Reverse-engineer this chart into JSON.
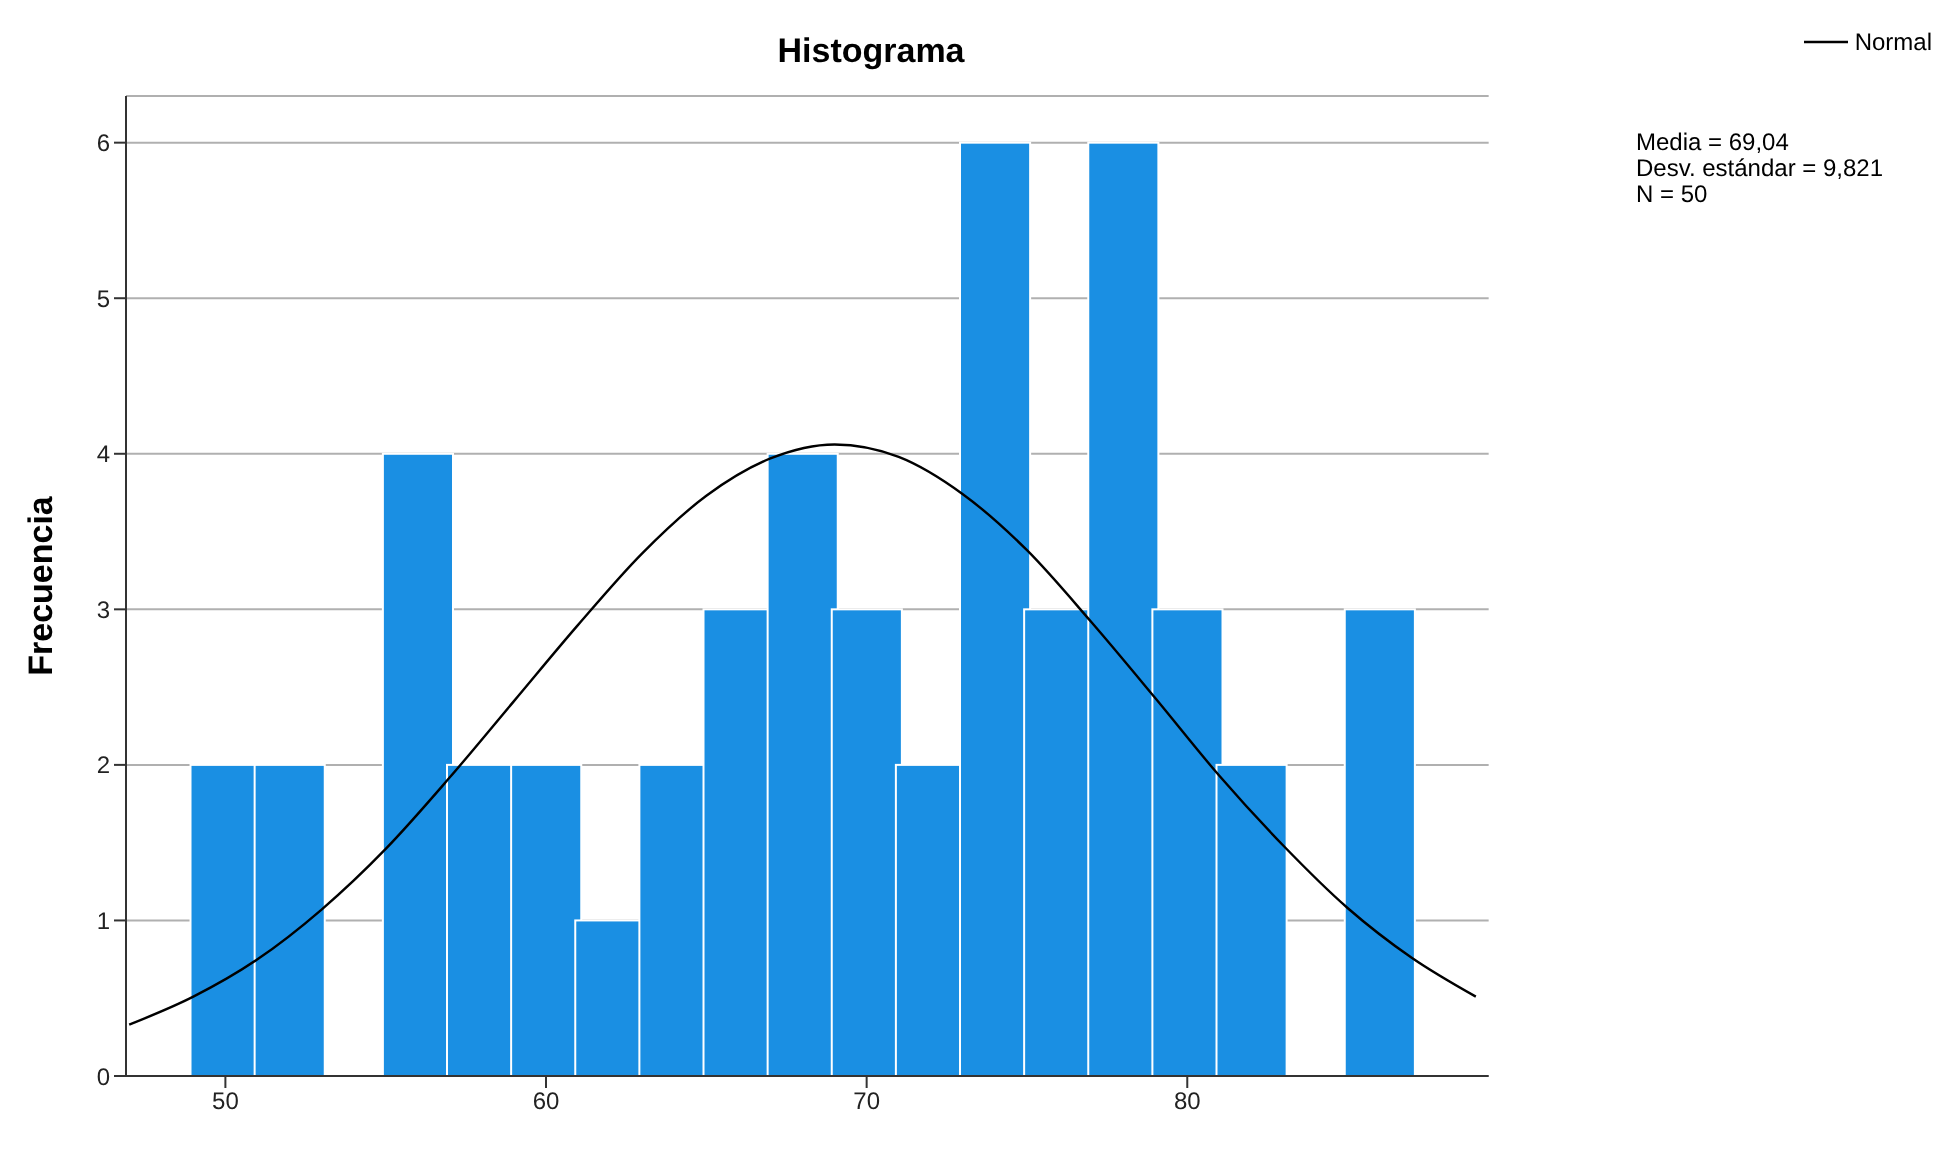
{
  "chart_data": {
    "type": "histogram",
    "title": "Histograma",
    "ylabel": "Frecuencia",
    "bins": [
      49,
      51,
      53,
      55,
      57,
      59,
      61,
      63,
      65,
      67,
      69,
      71,
      73,
      75,
      77,
      79,
      81,
      83,
      85,
      87
    ],
    "values": [
      2,
      2,
      0,
      4,
      2,
      2,
      1,
      2,
      3,
      4,
      3,
      2,
      6,
      3,
      6,
      3,
      2,
      0,
      3
    ],
    "color": "#1a8fe3",
    "series": [
      {
        "type": "line",
        "name": "Normal",
        "color": "#000000",
        "x": [
          47,
          49,
          51,
          53,
          55,
          57,
          59,
          61,
          63,
          65,
          67,
          69,
          71,
          73,
          75,
          77,
          79,
          81,
          83,
          85,
          87,
          89
        ],
        "values": [
          0.33,
          0.51,
          0.75,
          1.07,
          1.46,
          1.92,
          2.41,
          2.9,
          3.36,
          3.73,
          3.97,
          4.06,
          3.98,
          3.74,
          3.38,
          2.92,
          2.43,
          1.93,
          1.48,
          1.08,
          0.76,
          0.51
        ]
      }
    ],
    "xlim": [
      46.9,
      89.4
    ],
    "xticks": [
      50,
      60,
      70,
      80
    ],
    "ylim": [
      0,
      6.3
    ],
    "yticks": [
      0,
      1,
      2,
      3,
      4,
      5,
      6
    ],
    "grid": "y",
    "legend": "top right",
    "annotations": [
      "Media = 69,04",
      "Desv. estándar = 9,821",
      "N = 50"
    ]
  }
}
